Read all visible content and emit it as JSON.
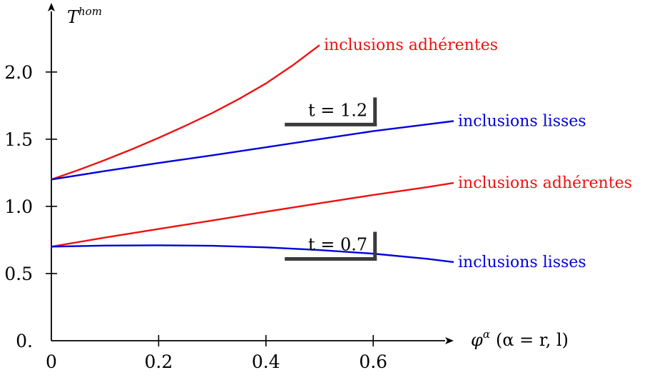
{
  "chart_data": {
    "type": "line",
    "xlabel": "φ^α (α = r, l)",
    "xlabel_main": "φ",
    "xlabel_sup": "α",
    "xlabel_suffix": "(α = r, l)",
    "ylabel": "T^hom",
    "ylabel_main": "T",
    "ylabel_sup": "hom",
    "xlim": [
      0,
      0.75
    ],
    "ylim": [
      0,
      2.3
    ],
    "x_ticks": [
      {
        "value": 0,
        "label": "0"
      },
      {
        "value": 0.2,
        "label": "0.2"
      },
      {
        "value": 0.4,
        "label": "0.4"
      },
      {
        "value": 0.6,
        "label": "0.6"
      }
    ],
    "y_ticks": [
      {
        "value": 0,
        "label": "0."
      },
      {
        "value": 0.5,
        "label": "0.5"
      },
      {
        "value": 1.0,
        "label": "1.0"
      },
      {
        "value": 1.5,
        "label": "1.5"
      },
      {
        "value": 2.0,
        "label": "2.0"
      }
    ],
    "grid": false,
    "series": [
      {
        "name": "inclusions adhérentes",
        "group": "t = 1.2",
        "color": "#ee1111",
        "x": [
          0,
          0.05,
          0.1,
          0.15,
          0.2,
          0.25,
          0.3,
          0.35,
          0.4,
          0.45,
          0.5
        ],
        "y": [
          1.2,
          1.27,
          1.345,
          1.425,
          1.51,
          1.6,
          1.695,
          1.8,
          1.915,
          2.05,
          2.2
        ]
      },
      {
        "name": "inclusions lisses",
        "group": "t = 1.2",
        "color": "#0000dd",
        "x": [
          0,
          0.1,
          0.2,
          0.3,
          0.4,
          0.5,
          0.6,
          0.7,
          0.75
        ],
        "y": [
          1.2,
          1.263,
          1.323,
          1.38,
          1.44,
          1.5,
          1.56,
          1.61,
          1.635
        ]
      },
      {
        "name": "inclusions adhérentes",
        "group": "t = 0.7",
        "color": "#ee1111",
        "x": [
          0,
          0.1,
          0.2,
          0.3,
          0.4,
          0.5,
          0.6,
          0.7,
          0.75
        ],
        "y": [
          0.7,
          0.768,
          0.832,
          0.895,
          0.96,
          1.023,
          1.085,
          1.143,
          1.175
        ]
      },
      {
        "name": "inclusions lisses",
        "group": "t = 0.7",
        "color": "#0000dd",
        "x": [
          0,
          0.1,
          0.2,
          0.3,
          0.4,
          0.5,
          0.6,
          0.7,
          0.75
        ],
        "y": [
          0.7,
          0.708,
          0.71,
          0.707,
          0.695,
          0.675,
          0.648,
          0.61,
          0.585
        ]
      }
    ],
    "annotations": [
      {
        "text": "t = 1.2",
        "x": 0.6,
        "y": 1.63
      },
      {
        "text": "t = 0.7",
        "x": 0.6,
        "y": 0.63
      }
    ]
  }
}
